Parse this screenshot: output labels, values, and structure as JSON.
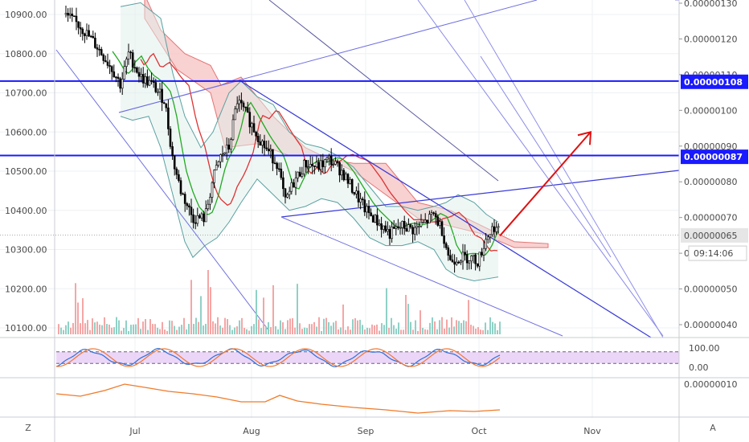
{
  "chart_data": {
    "type": "candlestick",
    "left_axis": {
      "ticks": [
        "10900.00",
        "10800.00",
        "10700.00",
        "10600.00",
        "10500.00",
        "10400.00",
        "10300.00",
        "10200.00",
        "10100.00"
      ],
      "values": [
        10900,
        10800,
        10700,
        10600,
        10500,
        10400,
        10300,
        10200,
        10100
      ],
      "range": [
        10075,
        10940
      ]
    },
    "right_axis": {
      "ticks": [
        "0.00000130",
        "0.00000120",
        "0.00000110",
        "0.00000100",
        "0.00000090",
        "0.00000080",
        "0.00000070",
        "0.00000060",
        "0.00000050",
        "0.00000040"
      ],
      "values": [
        130,
        120,
        110,
        100,
        90,
        80,
        70,
        60,
        50,
        40
      ],
      "tags": [
        {
          "text": "0.00000108",
          "value": 108,
          "color": "#1a1aff"
        },
        {
          "text": "0.00000087",
          "value": 87,
          "color": "#1a1aff"
        },
        {
          "text": "0.00000065",
          "value": 65,
          "color": "#e6e6e6",
          "text_color": "#333"
        }
      ],
      "countdown": "09:14:06"
    },
    "x_axis": {
      "labels": [
        "Jul",
        "Aug",
        "Sep",
        "Oct",
        "Nov"
      ]
    },
    "oscillator": {
      "ticks": [
        "100.00",
        "0.00"
      ],
      "values": [
        100,
        0
      ]
    },
    "lower_indicator": {
      "ticks": [
        "0.00000010"
      ]
    },
    "horizontal_levels": [
      10730,
      10540
    ],
    "target_arrow": {
      "from": [
        10335
      ],
      "to": [
        10600
      ]
    }
  },
  "ui": {
    "corner_left": "Z",
    "corner_right": "A"
  },
  "colors": {
    "candle": "#000000",
    "bb_band": "#5aa0a0",
    "green_ma": "#22aa22",
    "red_ma": "#dd3333",
    "channel": "#4040d0",
    "cloud_red": "#f7c9c9",
    "level": "#1a1aff",
    "stoch_bg": "#e6c8f5"
  }
}
